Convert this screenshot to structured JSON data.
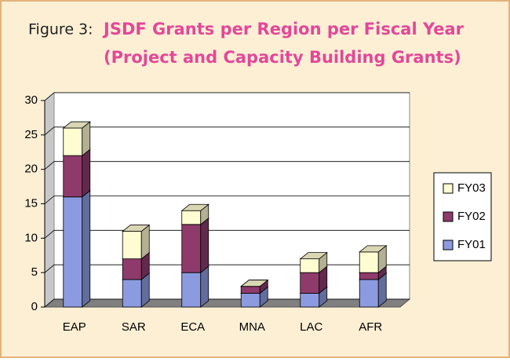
{
  "chart_data": {
    "type": "bar3d_stacked",
    "figure_label": "Figure 3:",
    "title": "JSDF Grants per Region per Fiscal Year",
    "subtitle": "(Project and Capacity Building Grants)",
    "categories": [
      "EAP",
      "SAR",
      "ECA",
      "MNA",
      "LAC",
      "AFR"
    ],
    "series": [
      {
        "name": "FY01",
        "color": "#8c9be0",
        "values": [
          16,
          4,
          5,
          2,
          2,
          4
        ]
      },
      {
        "name": "FY02",
        "color": "#8e3b6c",
        "values": [
          6,
          3,
          7,
          1,
          3,
          1
        ]
      },
      {
        "name": "FY03",
        "color": "#fffcd2",
        "values": [
          4,
          4,
          2,
          0,
          2,
          3
        ]
      }
    ],
    "ylim": [
      0,
      30
    ],
    "yticks": [
      0,
      5,
      10,
      15,
      20,
      25,
      30
    ],
    "grid": true,
    "legend": "right"
  }
}
